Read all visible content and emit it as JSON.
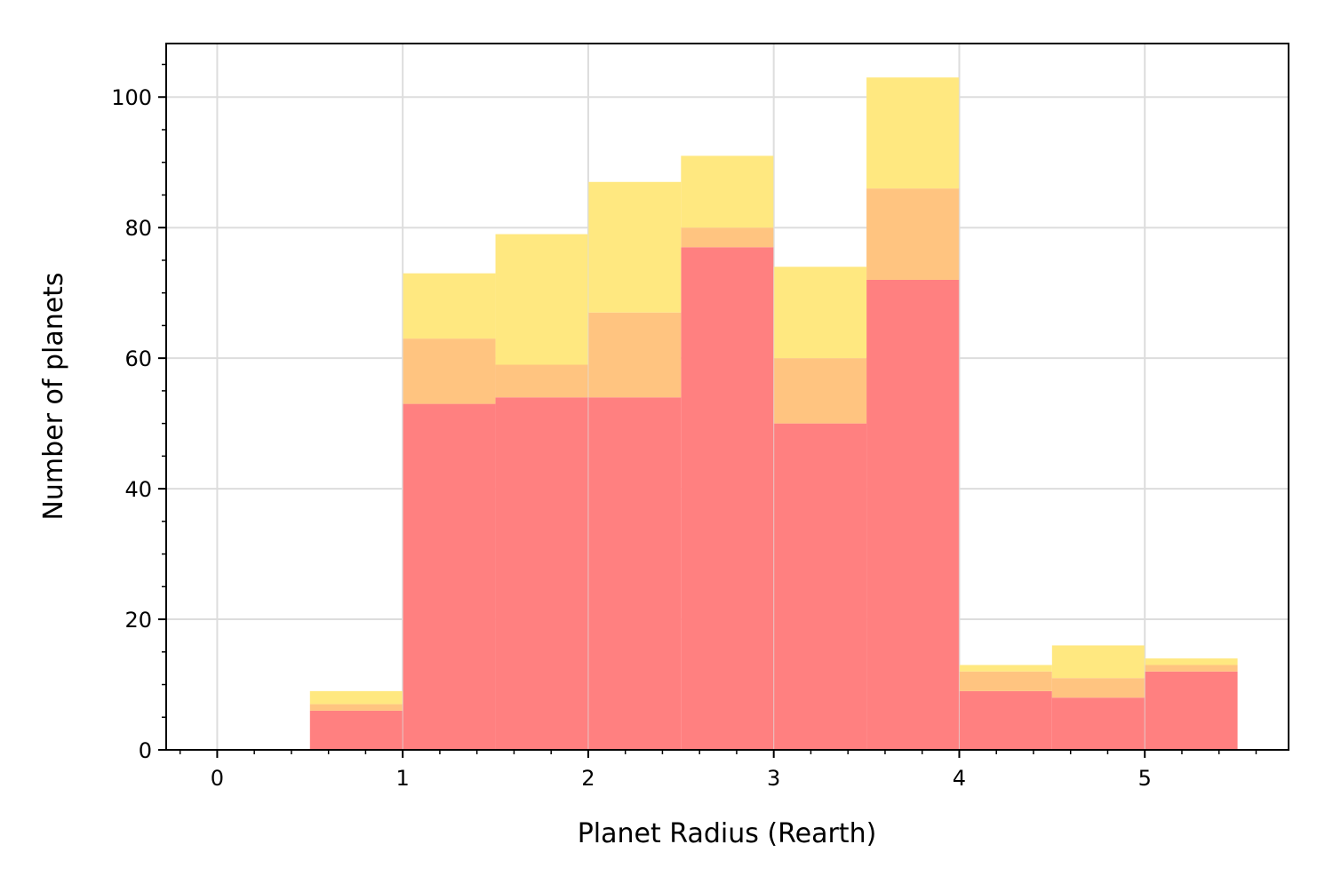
{
  "chart_data": {
    "type": "bar",
    "stacked": true,
    "title": "",
    "xlabel": "Planet Radius (Rearth)",
    "ylabel": "Number of planets",
    "xlim": [
      -0.275,
      5.775
    ],
    "ylim": [
      0,
      108.2
    ],
    "grid": true,
    "legend": false,
    "bin_edges": [
      0.0,
      0.5,
      1.0,
      1.5,
      2.0,
      2.5,
      3.0,
      3.5,
      4.0,
      4.5,
      5.0,
      5.5
    ],
    "series": [
      {
        "values": [
          0,
          6,
          53,
          54,
          54,
          77,
          50,
          72,
          9,
          8,
          12
        ],
        "color": "#ff8080"
      },
      {
        "values": [
          0,
          1,
          10,
          5,
          13,
          3,
          10,
          14,
          3,
          3,
          1
        ],
        "color": "#ffc480"
      },
      {
        "values": [
          0,
          2,
          10,
          20,
          20,
          11,
          14,
          17,
          1,
          5,
          1
        ],
        "color": "#ffe880"
      }
    ],
    "x_ticks": [
      0,
      1,
      2,
      3,
      4,
      5
    ],
    "x_tick_labels": [
      "0",
      "1",
      "2",
      "3",
      "4",
      "5"
    ],
    "y_ticks": [
      0,
      20,
      40,
      60,
      80,
      100
    ],
    "y_tick_labels": [
      "0",
      "20",
      "40",
      "60",
      "80",
      "100"
    ],
    "x_minor_step": 0.2,
    "y_minor_step": 5
  }
}
